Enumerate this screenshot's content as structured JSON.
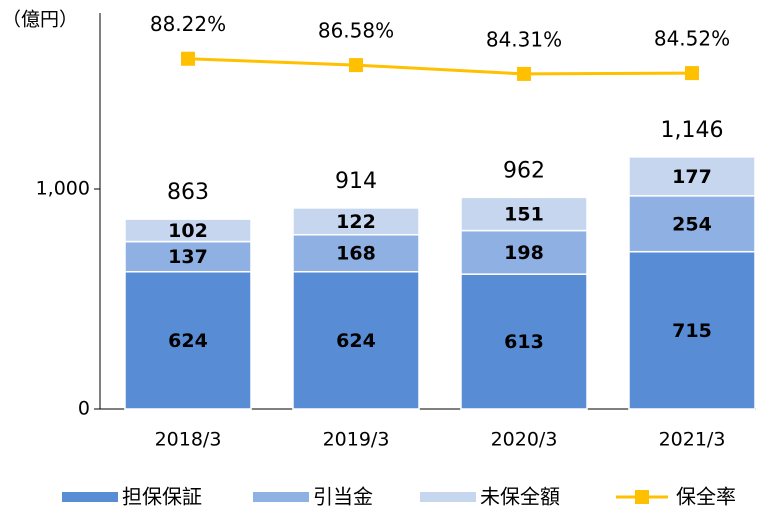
{
  "chart_data": {
    "type": "bar",
    "stacked": true,
    "y_axis_label": "（億円）",
    "categories": [
      "2018/3",
      "2019/3",
      "2020/3",
      "2021/3"
    ],
    "series": [
      {
        "name": "担保保証",
        "color": "#588dd5",
        "values": [
          624,
          624,
          613,
          715
        ]
      },
      {
        "name": "引当金",
        "color": "#8fb0e3",
        "values": [
          137,
          168,
          198,
          254
        ]
      },
      {
        "name": "未保全額",
        "color": "#c6d6ef",
        "values": [
          102,
          122,
          151,
          177
        ]
      },
      {
        "name": "保全率",
        "type": "line",
        "axis": "y2",
        "color": "#ffc000",
        "values": [
          88.22,
          86.58,
          84.31,
          84.52
        ],
        "value_labels": [
          "88.22%",
          "86.58%",
          "84.31%",
          "84.52%"
        ]
      }
    ],
    "totals": [
      863,
      914,
      962,
      1146
    ],
    "total_labels": [
      "863",
      "914",
      "962",
      "1,146"
    ],
    "ylim": [
      0,
      1800
    ],
    "yticks": [
      0,
      {
        "value": 1000,
        "label": "1,000"
      }
    ],
    "y2lim": [
      -2,
      100
    ],
    "legend": "bottom"
  }
}
